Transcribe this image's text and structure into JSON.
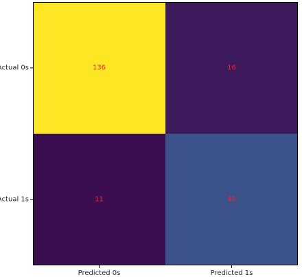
{
  "chart_data": {
    "type": "heatmap",
    "title": "",
    "xlabel": "",
    "ylabel": "",
    "x_categories": [
      "Predicted 0s",
      "Predicted 1s"
    ],
    "y_categories": [
      "Actual 0s",
      "Actual 1s"
    ],
    "values": [
      [
        136,
        16
      ],
      [
        11,
        40
      ]
    ],
    "colormap": "viridis",
    "cell_colors": [
      [
        "#fde725",
        "#3d1a5c"
      ],
      [
        "#3b0f4f",
        "#3b528b"
      ]
    ],
    "annotation_color": "#ff2020",
    "grid": false,
    "legend": "none"
  }
}
